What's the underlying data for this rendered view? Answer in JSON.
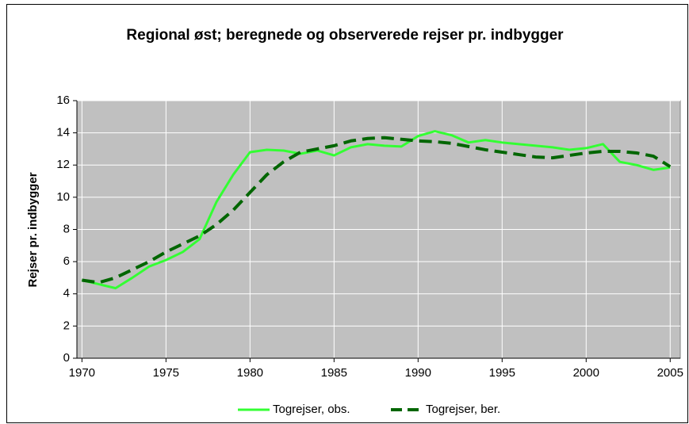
{
  "chart_data": {
    "type": "line",
    "title": "Regional øst; beregnede og observerede rejser pr. indbygger",
    "y_label": "Rejser pr. indbygger",
    "x": [
      1970,
      1971,
      1972,
      1973,
      1974,
      1975,
      1976,
      1977,
      1978,
      1979,
      1980,
      1981,
      1982,
      1983,
      1984,
      1985,
      1986,
      1987,
      1988,
      1989,
      1990,
      1991,
      1992,
      1993,
      1994,
      1995,
      1996,
      1997,
      1998,
      1999,
      2000,
      2001,
      2002,
      2003,
      2004,
      2005
    ],
    "series": [
      {
        "name": "Togrejser, obs.",
        "color": "#33ff33",
        "dash": false,
        "values": [
          4.85,
          4.6,
          4.35,
          5.0,
          5.7,
          6.1,
          6.6,
          7.4,
          9.7,
          11.4,
          12.8,
          12.95,
          12.9,
          12.7,
          12.9,
          12.6,
          13.1,
          13.3,
          13.2,
          13.15,
          13.8,
          14.1,
          13.85,
          13.4,
          13.55,
          13.4,
          13.3,
          13.2,
          13.1,
          12.95,
          13.05,
          13.3,
          12.2,
          12.0,
          11.7,
          11.85
        ]
      },
      {
        "name": "Togrejser, ber.",
        "color": "#006600",
        "dash": true,
        "values": [
          4.85,
          4.7,
          5.0,
          5.5,
          6.0,
          6.6,
          7.1,
          7.6,
          8.3,
          9.2,
          10.3,
          11.4,
          12.2,
          12.8,
          13.0,
          13.2,
          13.5,
          13.65,
          13.7,
          13.6,
          13.5,
          13.45,
          13.35,
          13.15,
          12.95,
          12.8,
          12.65,
          12.5,
          12.45,
          12.6,
          12.75,
          12.85,
          12.85,
          12.75,
          12.55,
          11.9
        ]
      }
    ],
    "xlim": [
      1969.7,
      2005.6
    ],
    "xticks": [
      1970,
      1975,
      1980,
      1985,
      1990,
      1995,
      2000,
      2005
    ],
    "ylim": [
      0,
      16
    ],
    "yticks": [
      0,
      2,
      4,
      6,
      8,
      10,
      12,
      14,
      16
    ],
    "grid": true,
    "legend": "bottom"
  }
}
